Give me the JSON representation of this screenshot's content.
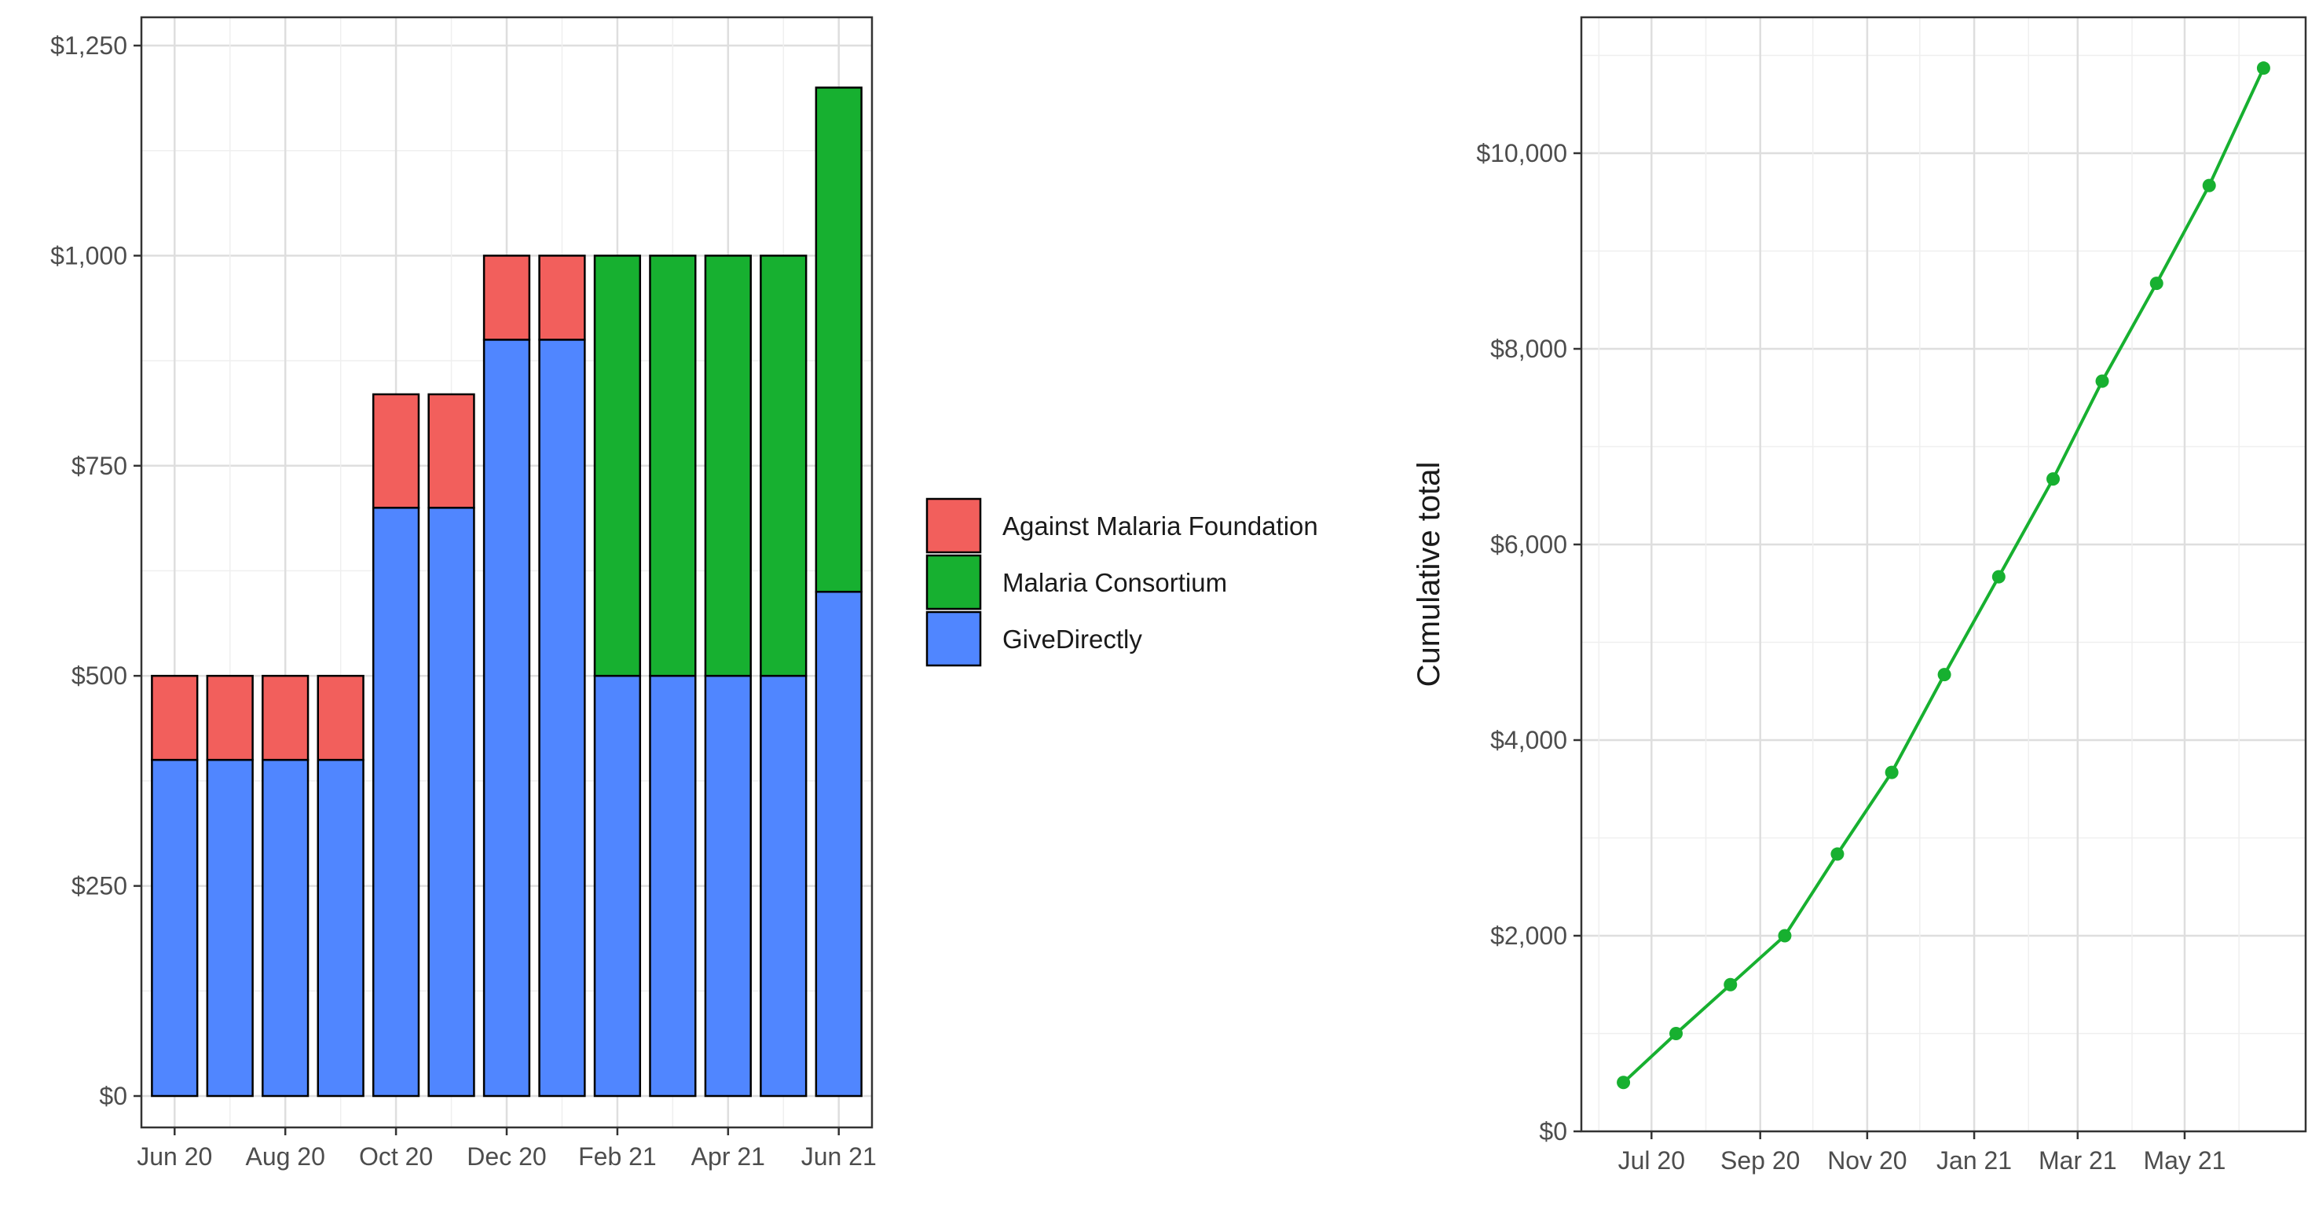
{
  "chart_data": [
    {
      "type": "bar",
      "stacked": true,
      "categories": [
        "2020-06",
        "2020-07",
        "2020-08",
        "2020-09",
        "2020-10",
        "2020-11",
        "2020-12",
        "2021-01",
        "2021-02",
        "2021-03",
        "2021-04",
        "2021-05",
        "2021-06"
      ],
      "series": [
        {
          "name": "GiveDirectly",
          "color": "#5086FF",
          "values": [
            400,
            400,
            400,
            400,
            700,
            700,
            900,
            900,
            500,
            500,
            500,
            500,
            600
          ]
        },
        {
          "name": "Malaria Consortium",
          "color": "#17B030",
          "values": [
            0,
            0,
            0,
            0,
            0,
            0,
            0,
            0,
            500,
            500,
            500,
            500,
            600
          ]
        },
        {
          "name": "Against Malaria Foundation",
          "color": "#F25F5C",
          "values": [
            100,
            100,
            100,
            100,
            135,
            135,
            100,
            100,
            0,
            0,
            0,
            0,
            0
          ]
        }
      ],
      "legend_order": [
        "Against Malaria Foundation",
        "Malaria Consortium",
        "GiveDirectly"
      ],
      "legend_position": "right",
      "ylim": [
        0,
        1250
      ],
      "y_ticks": [
        0,
        250,
        500,
        750,
        1000,
        1250
      ],
      "y_tick_labels": [
        "$0",
        "$250",
        "$500",
        "$750",
        "$1,000",
        "$1,250"
      ],
      "x_ticks": [
        "2020-06",
        "2020-08",
        "2020-10",
        "2020-12",
        "2021-02",
        "2021-04",
        "2021-06"
      ],
      "x_tick_labels": [
        "Jun 20",
        "Aug 20",
        "Oct 20",
        "Dec 20",
        "Feb 21",
        "Apr 21",
        "Jun 21"
      ],
      "xlabel": "",
      "ylabel": "",
      "grid": true,
      "bar_outline": "#000000"
    },
    {
      "type": "line",
      "color": "#17B030",
      "x": [
        "2020-06-15",
        "2020-07-15",
        "2020-08-15",
        "2020-09-15",
        "2020-10-15",
        "2020-11-15",
        "2020-12-15",
        "2021-01-15",
        "2021-02-15",
        "2021-03-15",
        "2021-04-15",
        "2021-05-15",
        "2021-06-15"
      ],
      "values": [
        500,
        1000,
        1500,
        2000,
        2835,
        3670,
        4670,
        5670,
        6670,
        7670,
        8670,
        9670,
        10870
      ],
      "ylim": [
        0,
        11000
      ],
      "y_ticks": [
        0,
        2000,
        4000,
        6000,
        8000,
        10000
      ],
      "y_tick_labels": [
        "$0",
        "$2,000",
        "$4,000",
        "$6,000",
        "$8,000",
        "$10,000"
      ],
      "x_ticks": [
        "2020-07-01",
        "2020-09-01",
        "2020-11-01",
        "2021-01-01",
        "2021-03-01",
        "2021-05-01"
      ],
      "x_tick_labels": [
        "Jul 20",
        "Sep 20",
        "Nov 20",
        "Jan 21",
        "Mar 21",
        "May 21"
      ],
      "xlabel": "",
      "ylabel": "Cumulative total",
      "grid": true,
      "markers": true
    }
  ]
}
